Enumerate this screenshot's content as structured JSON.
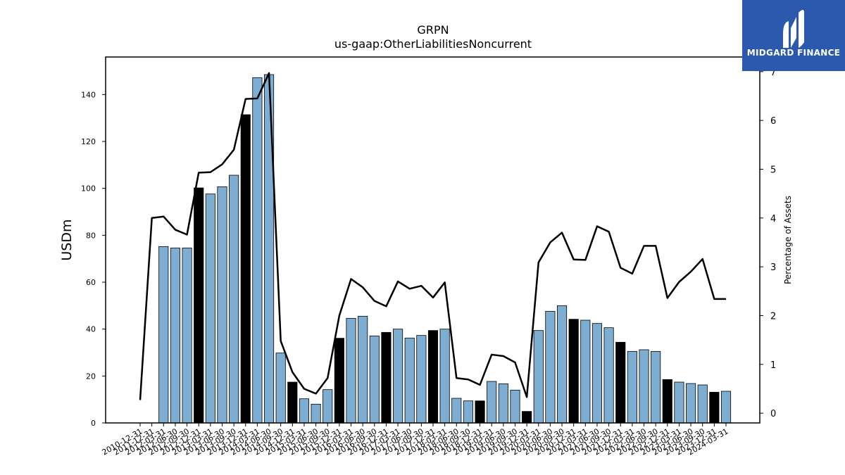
{
  "chart_data": {
    "type": "bar",
    "title": "GRPN",
    "subtitle": "us-gaap:OtherLiabilitiesNoncurrent",
    "ylabel": "USDm",
    "y2label": "Percentage of Assets",
    "ylim": [
      0,
      156
    ],
    "y2lim": [
      -0.2,
      7.3
    ],
    "yticks": [
      0,
      20,
      40,
      60,
      80,
      100,
      120,
      140
    ],
    "y2ticks": [
      0,
      1,
      2,
      3,
      4,
      5,
      6,
      7
    ],
    "categories": [
      "2010-12-31",
      "2011-12-31",
      "2012-03-31",
      "2012-06-30",
      "2012-09-30",
      "2012-12-31",
      "2013-03-31",
      "2013-06-30",
      "2013-09-30",
      "2013-12-31",
      "2014-03-31",
      "2014-06-30",
      "2014-09-30",
      "2014-12-31",
      "2015-03-31",
      "2015-06-30",
      "2015-09-30",
      "2015-12-31",
      "2016-03-31",
      "2016-06-30",
      "2016-09-30",
      "2016-12-31",
      "2017-03-31",
      "2017-06-30",
      "2017-09-30",
      "2017-12-31",
      "2018-03-31",
      "2018-06-30",
      "2018-09-30",
      "2018-12-31",
      "2019-03-31",
      "2019-06-30",
      "2019-09-30",
      "2019-12-31",
      "2020-03-31",
      "2020-06-30",
      "2020-09-30",
      "2020-12-31",
      "2021-03-31",
      "2021-06-30",
      "2021-09-30",
      "2021-12-31",
      "2022-03-31",
      "2022-06-30",
      "2022-09-30",
      "2022-12-31",
      "2023-03-31",
      "2023-06-30",
      "2023-09-30",
      "2023-12-31",
      "2024-03-31"
    ],
    "series": [
      {
        "kind": "bar",
        "values": [
          null,
          null,
          75.2,
          74.6,
          74.6,
          100.2,
          97.6,
          100.7,
          105.6,
          131.4,
          147.2,
          148.5,
          29.8,
          17.4,
          10.3,
          8.0,
          14.2,
          36.1,
          44.6,
          45.5,
          37.1,
          38.6,
          40.0,
          36.2,
          37.3,
          39.4,
          40.0,
          10.5,
          9.4,
          9.4,
          17.7,
          16.7,
          14.0,
          4.9,
          39.4,
          47.6,
          50.0,
          44.2,
          43.8,
          42.4,
          40.6,
          34.4,
          30.5,
          31.2,
          30.5,
          18.5,
          17.4,
          16.8,
          16.2,
          13.1,
          13.5
        ],
        "black_bar_indices": [
          5,
          9,
          13,
          17,
          21,
          25,
          29,
          33,
          37,
          41,
          45,
          49
        ]
      },
      {
        "kind": "line",
        "axis": "right",
        "values": [
          0.27,
          4.0,
          4.03,
          3.76,
          3.66,
          4.93,
          4.94,
          5.1,
          5.4,
          6.44,
          6.45,
          6.97,
          1.48,
          0.84,
          0.5,
          0.4,
          0.72,
          2.0,
          2.75,
          2.58,
          2.3,
          2.19,
          2.7,
          2.55,
          2.61,
          2.37,
          2.68,
          0.72,
          0.69,
          0.58,
          1.2,
          1.17,
          1.04,
          0.33,
          3.09,
          3.5,
          3.7,
          3.15,
          3.14,
          3.83,
          3.72,
          2.98,
          2.86,
          3.43,
          3.43,
          2.36,
          2.69,
          2.9,
          3.16,
          2.34,
          2.34
        ]
      }
    ],
    "colors": {
      "bar": "#7eadd2",
      "bar_highlight": "#000000",
      "bar_edge": "#000000",
      "line": "#000000"
    }
  },
  "logo": {
    "text": "MIDGARD FINANCE",
    "color": "#2b59ad"
  }
}
